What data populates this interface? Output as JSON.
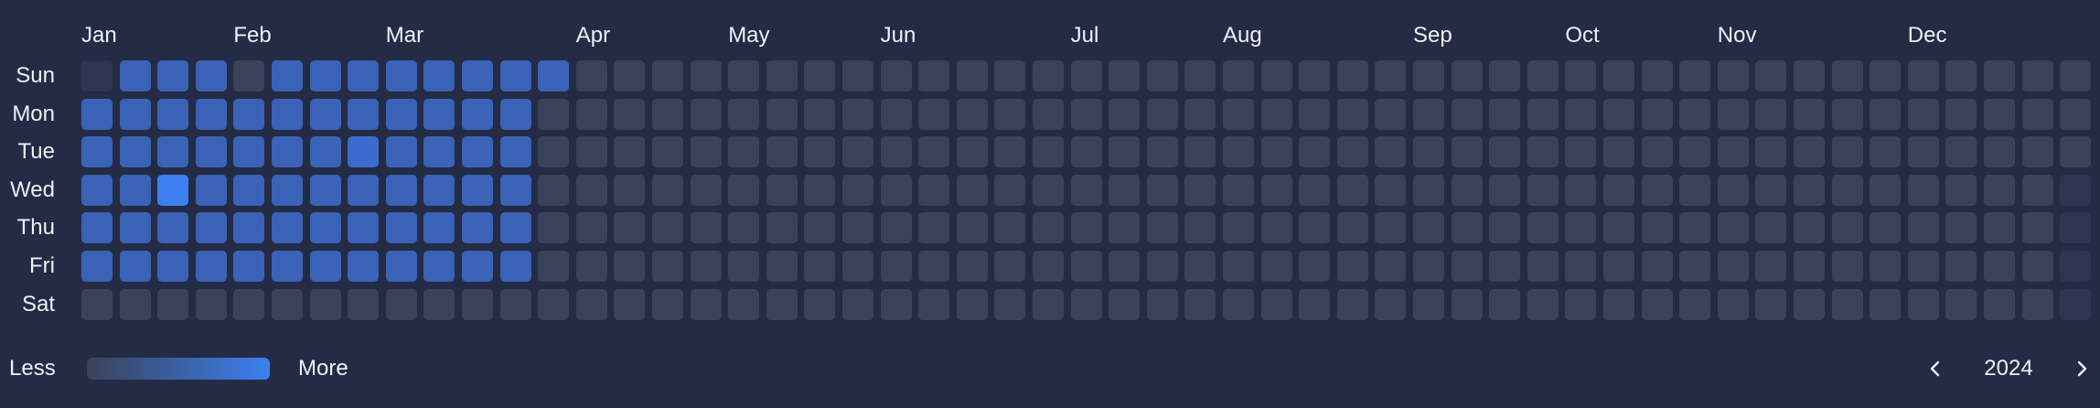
{
  "heatmap": {
    "months": [
      {
        "label": "Jan",
        "week": 0
      },
      {
        "label": "Feb",
        "week": 4
      },
      {
        "label": "Mar",
        "week": 8
      },
      {
        "label": "Apr",
        "week": 13
      },
      {
        "label": "May",
        "week": 17
      },
      {
        "label": "Jun",
        "week": 21
      },
      {
        "label": "Jul",
        "week": 26
      },
      {
        "label": "Aug",
        "week": 30
      },
      {
        "label": "Sep",
        "week": 35
      },
      {
        "label": "Oct",
        "week": 39
      },
      {
        "label": "Nov",
        "week": 43
      },
      {
        "label": "Dec",
        "week": 48
      }
    ],
    "days": [
      "Sun",
      "Mon",
      "Tue",
      "Wed",
      "Thu",
      "Fri",
      "Sat"
    ],
    "weeks": 53,
    "cells": [
      [
        -1,
        2,
        2,
        2,
        0,
        2,
        2,
        2,
        2,
        2,
        2,
        2,
        2,
        0,
        0,
        0,
        0,
        0,
        0,
        0,
        0,
        0,
        0,
        0,
        0,
        0,
        0,
        0,
        0,
        0,
        0,
        0,
        0,
        0,
        0,
        0,
        0,
        0,
        0,
        0,
        0,
        0,
        0,
        0,
        0,
        0,
        0,
        0,
        0,
        0,
        0,
        0,
        0
      ],
      [
        2,
        2,
        2,
        2,
        2,
        2,
        2,
        2,
        2,
        2,
        2,
        2,
        0,
        0,
        0,
        0,
        0,
        0,
        0,
        0,
        0,
        0,
        0,
        0,
        0,
        0,
        0,
        0,
        0,
        0,
        0,
        0,
        0,
        0,
        0,
        0,
        0,
        0,
        0,
        0,
        0,
        0,
        0,
        0,
        0,
        0,
        0,
        0,
        0,
        0,
        0,
        0,
        0
      ],
      [
        2,
        2,
        2,
        2,
        2,
        2,
        2,
        3,
        2,
        2,
        2,
        2,
        0,
        0,
        0,
        0,
        0,
        0,
        0,
        0,
        0,
        0,
        0,
        0,
        0,
        0,
        0,
        0,
        0,
        0,
        0,
        0,
        0,
        0,
        0,
        0,
        0,
        0,
        0,
        0,
        0,
        0,
        0,
        0,
        0,
        0,
        0,
        0,
        0,
        0,
        0,
        0,
        0
      ],
      [
        2,
        2,
        4,
        2,
        2,
        2,
        2,
        2,
        2,
        2,
        2,
        2,
        0,
        0,
        0,
        0,
        0,
        0,
        0,
        0,
        0,
        0,
        0,
        0,
        0,
        0,
        0,
        0,
        0,
        0,
        0,
        0,
        0,
        0,
        0,
        0,
        0,
        0,
        0,
        0,
        0,
        0,
        0,
        0,
        0,
        0,
        0,
        0,
        0,
        0,
        0,
        0,
        -1
      ],
      [
        2,
        2,
        2,
        2,
        2,
        2,
        2,
        2,
        2,
        2,
        2,
        2,
        0,
        0,
        0,
        0,
        0,
        0,
        0,
        0,
        0,
        0,
        0,
        0,
        0,
        0,
        0,
        0,
        0,
        0,
        0,
        0,
        0,
        0,
        0,
        0,
        0,
        0,
        0,
        0,
        0,
        0,
        0,
        0,
        0,
        0,
        0,
        0,
        0,
        0,
        0,
        0,
        -1
      ],
      [
        2,
        2,
        2,
        2,
        2,
        2,
        2,
        2,
        2,
        2,
        2,
        2,
        0,
        0,
        0,
        0,
        0,
        0,
        0,
        0,
        0,
        0,
        0,
        0,
        0,
        0,
        0,
        0,
        0,
        0,
        0,
        0,
        0,
        0,
        0,
        0,
        0,
        0,
        0,
        0,
        0,
        0,
        0,
        0,
        0,
        0,
        0,
        0,
        0,
        0,
        0,
        0,
        -1
      ],
      [
        0,
        0,
        0,
        0,
        0,
        0,
        0,
        0,
        0,
        0,
        0,
        0,
        0,
        0,
        0,
        0,
        0,
        0,
        0,
        0,
        0,
        0,
        0,
        0,
        0,
        0,
        0,
        0,
        0,
        0,
        0,
        0,
        0,
        0,
        0,
        0,
        0,
        0,
        0,
        0,
        0,
        0,
        0,
        0,
        0,
        0,
        0,
        0,
        0,
        0,
        0,
        0,
        -1
      ]
    ],
    "level_colors": {
      "outside": "#2e3550",
      "0": "#3a4259",
      "1": "#3d5283",
      "2": "#3a62b6",
      "3": "#3b6bcd",
      "4": "#3b7ff0"
    }
  },
  "legend": {
    "less_label": "Less",
    "more_label": "More",
    "gradient_from": "#3a4259",
    "gradient_to": "#3b7ff0"
  },
  "year_nav": {
    "year": "2024",
    "prev_icon": "chevron-left-icon",
    "next_icon": "chevron-right-icon"
  }
}
